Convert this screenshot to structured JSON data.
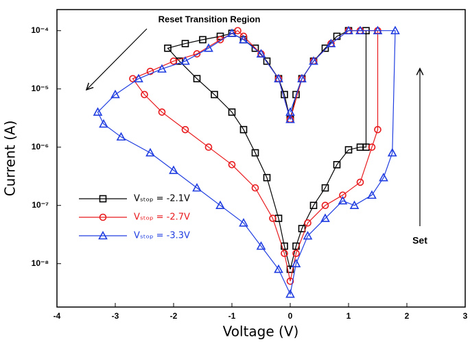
{
  "chart_data": {
    "type": "line",
    "x_label": "Voltage (V)",
    "y_label": "Current (A)",
    "ylog": true,
    "grid": false,
    "xlim": [
      -4,
      3
    ],
    "xticks": [
      -4,
      -3,
      -2,
      -1,
      0,
      1,
      2,
      3
    ],
    "ylim": [
      1.8e-09,
      0.00023
    ],
    "yticks": [
      {
        "value": 1e-08,
        "label": "10⁻⁸"
      },
      {
        "value": 1e-07,
        "label": "10⁻⁷"
      },
      {
        "value": 1e-06,
        "label": "10⁻⁶"
      },
      {
        "value": 1e-05,
        "label": "10⁻⁵"
      },
      {
        "value": 0.0001,
        "label": "10⁻⁴"
      }
    ],
    "annotations": [
      "Reset Transition Region",
      "Set"
    ],
    "series": [
      {
        "name": "Vₛₜₒₚ = -2.1V",
        "color": "#000000",
        "marker": "square",
        "x": [
          0,
          -0.1,
          -0.2,
          -0.4,
          -0.6,
          -0.8,
          -1.0,
          -1.2,
          -1.5,
          -1.8,
          -2.1,
          -1.9,
          -1.6,
          -1.3,
          -1.0,
          -0.8,
          -0.6,
          -0.4,
          -0.2,
          -0.1,
          0,
          0.1,
          0.2,
          0.4,
          0.6,
          0.8,
          1.0,
          1.2,
          1.3,
          1.3,
          1.0,
          0.8,
          0.6,
          0.4,
          0.2,
          0.1,
          0
        ],
        "values": [
          3e-06,
          8e-06,
          1.5e-05,
          3e-05,
          5e-05,
          7e-05,
          9e-05,
          8e-05,
          7e-05,
          6e-05,
          5e-05,
          3e-05,
          1.5e-05,
          8e-06,
          4e-06,
          2e-06,
          8e-07,
          3e-07,
          6e-08,
          2e-08,
          8e-09,
          2e-08,
          4e-08,
          1e-07,
          2e-07,
          5e-07,
          9e-07,
          1e-06,
          1e-06,
          0.0001,
          0.0001,
          8e-05,
          5e-05,
          3e-05,
          1.5e-05,
          8e-06,
          3e-06
        ]
      },
      {
        "name": "Vₛₜₒₚ = -2.7V",
        "color": "#e8191c",
        "marker": "circle",
        "x": [
          0,
          -0.2,
          -0.5,
          -0.8,
          -0.9,
          -1.2,
          -1.6,
          -2.0,
          -2.4,
          -2.7,
          -2.5,
          -2.2,
          -1.8,
          -1.4,
          -1.0,
          -0.6,
          -0.3,
          -0.1,
          0,
          0.1,
          0.3,
          0.6,
          0.9,
          1.2,
          1.4,
          1.5,
          1.5,
          1.2,
          1.0,
          0.7,
          0.4,
          0.2,
          0
        ],
        "values": [
          3e-06,
          1.5e-05,
          4e-05,
          8e-05,
          0.0001,
          7e-05,
          4e-05,
          3e-05,
          2e-05,
          1.5e-05,
          8e-06,
          4e-06,
          2e-06,
          1e-06,
          5e-07,
          2e-07,
          6e-08,
          1.5e-08,
          5e-09,
          1.5e-08,
          5e-08,
          1e-07,
          1.5e-07,
          2.5e-07,
          1e-06,
          2e-06,
          0.0001,
          0.0001,
          0.0001,
          6e-05,
          3e-05,
          1.5e-05,
          3e-06
        ]
      },
      {
        "name": "Vₛₜₒₚ = -3.3V",
        "color": "#1f3de0",
        "marker": "triangle",
        "x": [
          0,
          -0.2,
          -0.5,
          -0.8,
          -1.0,
          -1.4,
          -1.8,
          -2.2,
          -2.6,
          -3.0,
          -3.3,
          -3.2,
          -2.9,
          -2.4,
          -2.0,
          -1.6,
          -1.2,
          -0.8,
          -0.5,
          -0.2,
          0,
          0.1,
          0.3,
          0.6,
          0.9,
          1.1,
          1.4,
          1.6,
          1.75,
          1.8,
          1.5,
          1.2,
          1.0,
          0.7,
          0.4,
          0.2,
          0
        ],
        "values": [
          3e-06,
          1.5e-05,
          4e-05,
          7e-05,
          9e-05,
          5e-05,
          3e-05,
          2.2e-05,
          1.5e-05,
          8e-06,
          4e-06,
          2.5e-06,
          1.5e-06,
          8e-07,
          4e-07,
          2e-07,
          1e-07,
          5e-08,
          2e-08,
          8e-09,
          3e-09,
          1e-08,
          3e-08,
          6e-08,
          1.2e-07,
          1e-07,
          1.5e-07,
          3e-07,
          8e-07,
          0.0001,
          0.0001,
          0.0001,
          0.0001,
          6e-05,
          3e-05,
          1.5e-05,
          4e-06
        ]
      }
    ]
  }
}
